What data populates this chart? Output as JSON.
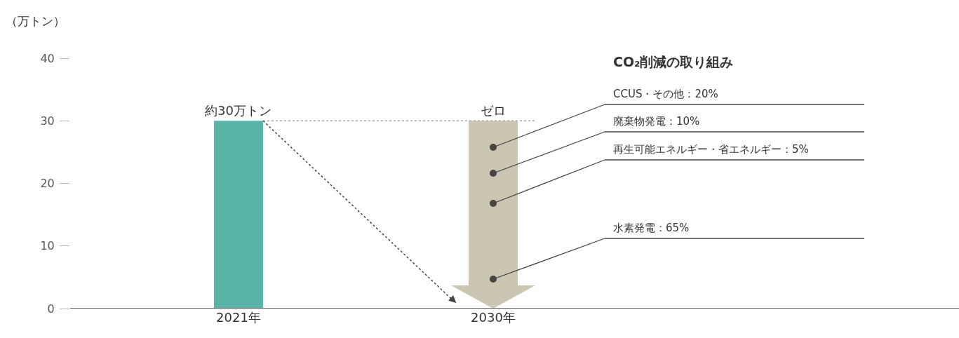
{
  "chart_data": {
    "type": "bar",
    "ylabel": "（万トン）",
    "categories": [
      "2021年",
      "2030年"
    ],
    "values": [
      30,
      0
    ],
    "color": "#5ab4a8",
    "ylim": [
      0,
      40
    ],
    "yticks": [
      0,
      10,
      20,
      30,
      40
    ],
    "ref_lines": [
      {
        "axis": "y",
        "value": 30,
        "color": "#aaaaaa",
        "line_style": "dotted"
      }
    ],
    "annotations": [
      {
        "text": "約30万トン",
        "x": "2021年",
        "y": 30
      },
      {
        "text": "ゼロ",
        "x": "2030年",
        "y": 30
      },
      "CO₂削減の取り組み",
      "CCUS・その他：20%",
      "廃棄物発電：10%",
      "再生可能エネルギー・省エネルギー：5%",
      "水素発電：65%"
    ]
  }
}
